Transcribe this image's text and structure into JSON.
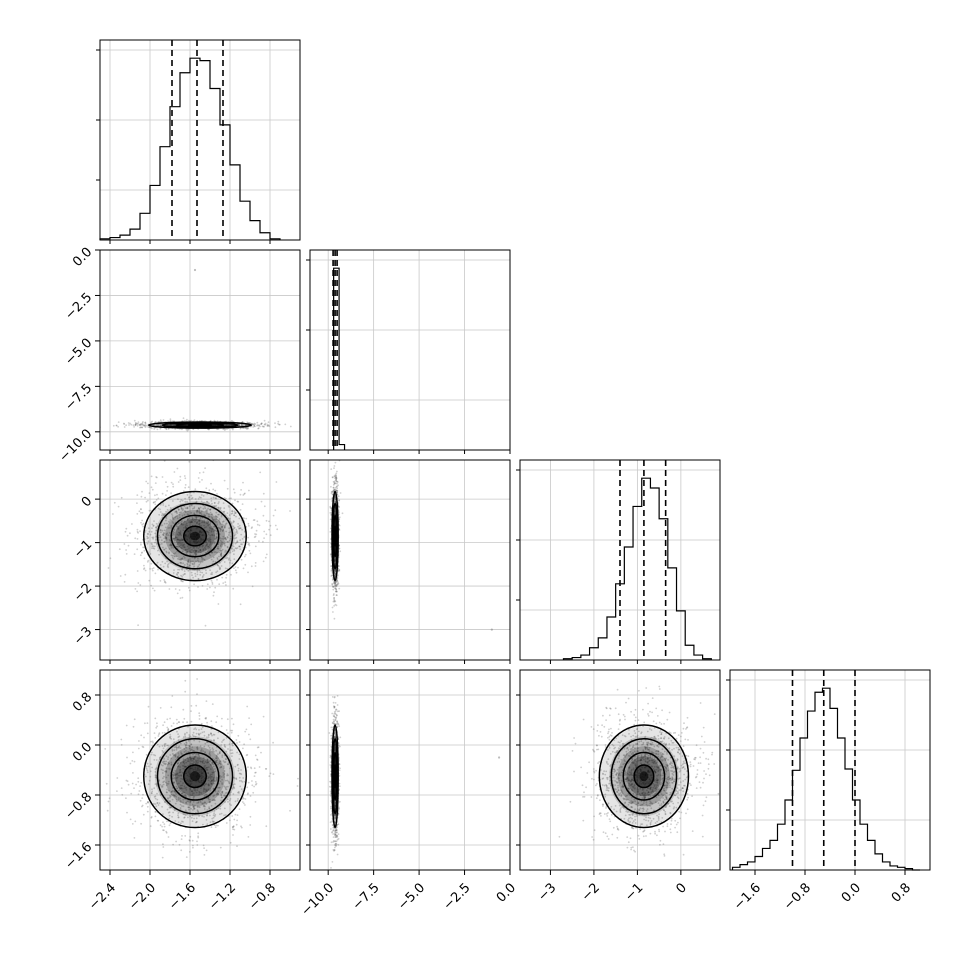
{
  "chart_data": {
    "type": "corner",
    "grid": true,
    "parameters": [
      {
        "range": [
          -2.5,
          -0.5
        ],
        "ticks": [
          -2.4,
          -2.0,
          -1.6,
          -1.2,
          -0.8
        ],
        "tick_labels": [
          "−2.4",
          "−2.0",
          "−1.6",
          "−1.2",
          "−0.8"
        ],
        "quantiles": [
          -1.78,
          -1.53,
          -1.27
        ],
        "hist": {
          "bins": [
            -2.45,
            -2.35,
            -2.25,
            -2.15,
            -2.05,
            -1.95,
            -1.85,
            -1.75,
            -1.65,
            -1.55,
            -1.45,
            -1.35,
            -1.25,
            -1.15,
            -1.05,
            -0.95,
            -0.85,
            -0.75
          ],
          "values": [
            1,
            2,
            4,
            9,
            22,
            45,
            77,
            110,
            138,
            150,
            148,
            125,
            95,
            62,
            32,
            16,
            6,
            1
          ]
        }
      },
      {
        "range": [
          -11.0,
          0.0
        ],
        "ticks": [
          -10.0,
          -7.5,
          -5.0,
          -2.5,
          0.0
        ],
        "tick_labels": [
          "−10.0",
          "−7.5",
          "−5.0",
          "−2.5",
          "0.0"
        ],
        "quantiles": [
          -9.73,
          -9.62,
          -9.51
        ],
        "hist": {
          "bins": [
            -9.55,
            -9.25
          ],
          "values": [
            100,
            3
          ]
        }
      },
      {
        "range": [
          -3.7,
          0.9
        ],
        "ticks": [
          -3,
          -2,
          -1,
          0
        ],
        "tick_labels": [
          "−3",
          "−2",
          "−1",
          "0"
        ],
        "quantiles": [
          -1.4,
          -0.85,
          -0.35
        ],
        "hist": {
          "bins": [
            -2.6,
            -2.4,
            -2.2,
            -2.0,
            -1.8,
            -1.6,
            -1.4,
            -1.2,
            -1.0,
            -0.8,
            -0.6,
            -0.4,
            -0.2,
            0.0,
            0.2,
            0.4,
            0.6
          ],
          "values": [
            1,
            2,
            4,
            10,
            18,
            35,
            62,
            92,
            125,
            148,
            140,
            115,
            75,
            40,
            12,
            4,
            1
          ]
        }
      },
      {
        "range": [
          -2.0,
          1.2
        ],
        "ticks": [
          -1.6,
          -0.8,
          0.0,
          0.8
        ],
        "tick_labels": [
          "−1.6",
          "−0.8",
          "0.0",
          "0.8"
        ],
        "quantiles": [
          -1.0,
          -0.5,
          0.0
        ],
        "hist": {
          "bins": [
            -1.9,
            -1.78,
            -1.66,
            -1.54,
            -1.42,
            -1.3,
            -1.18,
            -1.06,
            -0.94,
            -0.82,
            -0.7,
            -0.58,
            -0.46,
            -0.34,
            -0.22,
            -0.1,
            0.02,
            0.14,
            0.26,
            0.38,
            0.5,
            0.62,
            0.74,
            0.86,
            0.98
          ],
          "values": [
            2,
            4,
            6,
            10,
            16,
            22,
            34,
            52,
            74,
            98,
            118,
            132,
            135,
            120,
            98,
            75,
            52,
            34,
            22,
            12,
            6,
            3,
            2,
            1,
            0
          ]
        }
      }
    ],
    "pairs": [
      {
        "row": 1,
        "col": 0,
        "mean": [
          -1.5,
          -9.63
        ],
        "sd": [
          0.25,
          0.06
        ]
      },
      {
        "row": 2,
        "col": 0,
        "mean": [
          -1.55,
          -0.85
        ],
        "sd": [
          0.25,
          0.5
        ]
      },
      {
        "row": 2,
        "col": 1,
        "mean": [
          -9.62,
          -0.85
        ],
        "sd": [
          0.06,
          0.5
        ]
      },
      {
        "row": 3,
        "col": 0,
        "mean": [
          -1.55,
          -0.5
        ],
        "sd": [
          0.25,
          0.4
        ]
      },
      {
        "row": 3,
        "col": 1,
        "mean": [
          -9.62,
          -0.5
        ],
        "sd": [
          0.06,
          0.4
        ]
      },
      {
        "row": 3,
        "col": 2,
        "mean": [
          -0.85,
          -0.5
        ],
        "sd": [
          0.5,
          0.4
        ]
      }
    ],
    "outliers": [
      {
        "row": 1,
        "col": 0,
        "x": -1.55,
        "y": -1.1
      },
      {
        "row": 2,
        "col": 1,
        "x": -1.0,
        "y": -3.0
      },
      {
        "row": 3,
        "col": 1,
        "x": -0.6,
        "y": -0.2
      }
    ]
  }
}
